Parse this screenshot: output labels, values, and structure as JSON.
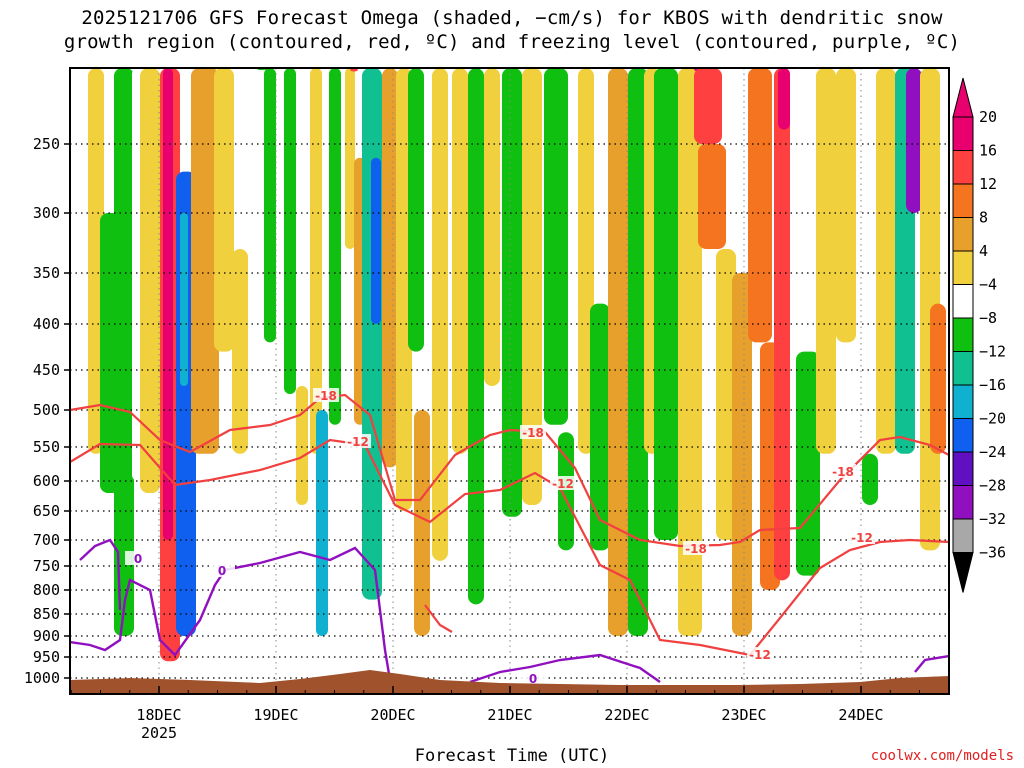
{
  "chart_data": {
    "type": "heatmap",
    "title_line1": "2025121706 GFS Forecast Omega (shaded, −cm/s) for KBOS with dendritic snow",
    "title_line2": "growth region (contoured, red, ºC) and freezing level (contoured, purple, ºC)",
    "xlabel": "Forecast Time (UTC)",
    "ylabel": "",
    "x_ticks": [
      "18DEC",
      "19DEC",
      "20DEC",
      "21DEC",
      "22DEC",
      "23DEC",
      "24DEC"
    ],
    "x_tick_year": "2025",
    "y_ticks": [
      250,
      300,
      350,
      400,
      450,
      500,
      550,
      600,
      650,
      700,
      750,
      800,
      850,
      900,
      950,
      1000
    ],
    "ylim": [
      1000,
      200
    ],
    "x_range_days": [
      -0.75,
      6.75
    ],
    "colorbar": {
      "labels": [
        20,
        16,
        12,
        8,
        4,
        -4,
        -8,
        -12,
        -16,
        -20,
        -24,
        -28,
        -32,
        -36
      ],
      "colors": [
        "#e8006e",
        "#ff4040",
        "#f4741f",
        "#e8a02c",
        "#f0d03c",
        "#ffffff",
        "#10c010",
        "#10c090",
        "#10b0d0",
        "#1060f0",
        "#6010c0",
        "#9010c0",
        "#a8a8a8",
        "#000000"
      ]
    },
    "contours": {
      "dendritic_levels": [
        "-18",
        "-12"
      ],
      "freezing_level": "0"
    },
    "contour_labels": [
      "-18",
      "-12",
      "-18",
      "-12",
      "-18",
      "-12",
      "-18",
      "-12",
      "0",
      "0",
      "0"
    ],
    "colors": {
      "dgz": "#f04040",
      "freezing": "#9010c0",
      "terrain": "#a0522d"
    }
  },
  "credit": "coolwx.com/models"
}
